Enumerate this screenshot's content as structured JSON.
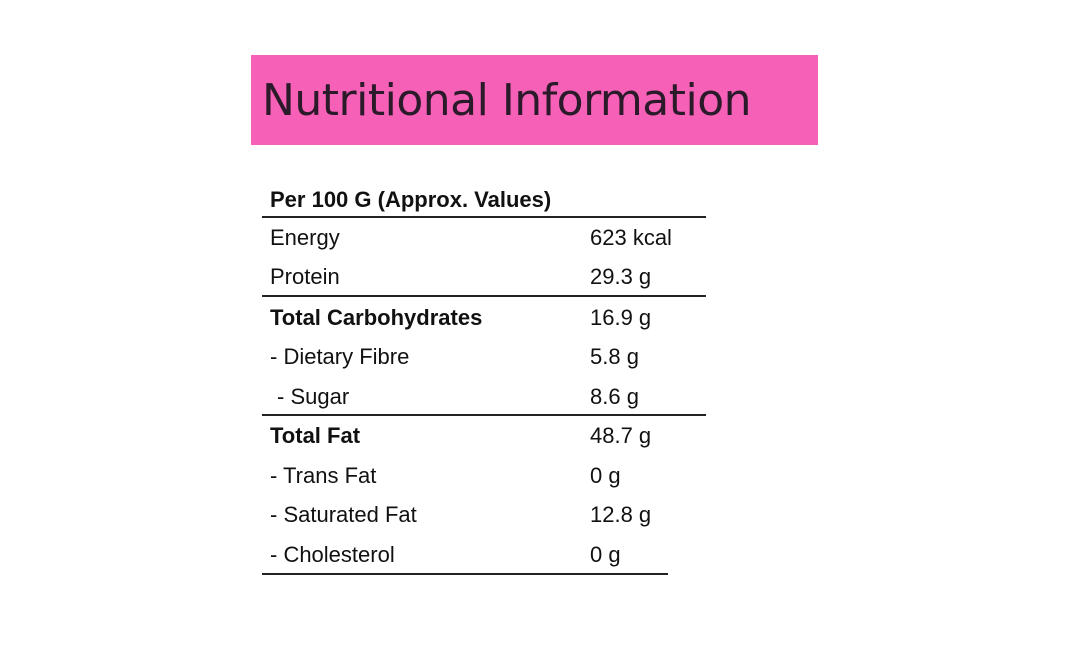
{
  "header": {
    "title": "Nutritional Information"
  },
  "table": {
    "heading": "Per 100 G (Approx. Values)",
    "rows": [
      [
        "Energy",
        "623 kcal"
      ],
      [
        "Protein",
        "29.3 g"
      ],
      [
        "Total Carbohydrates",
        "16.9 g"
      ],
      [
        "- Dietary Fibre",
        "5.8 g"
      ],
      [
        "- Sugar",
        "8.6 g"
      ],
      [
        "Total Fat",
        "48.7 g"
      ],
      [
        "- Trans Fat",
        "0 g"
      ],
      [
        "- Saturated Fat",
        "12.8 g"
      ],
      [
        "- Cholesterol",
        "0 g"
      ]
    ]
  }
}
